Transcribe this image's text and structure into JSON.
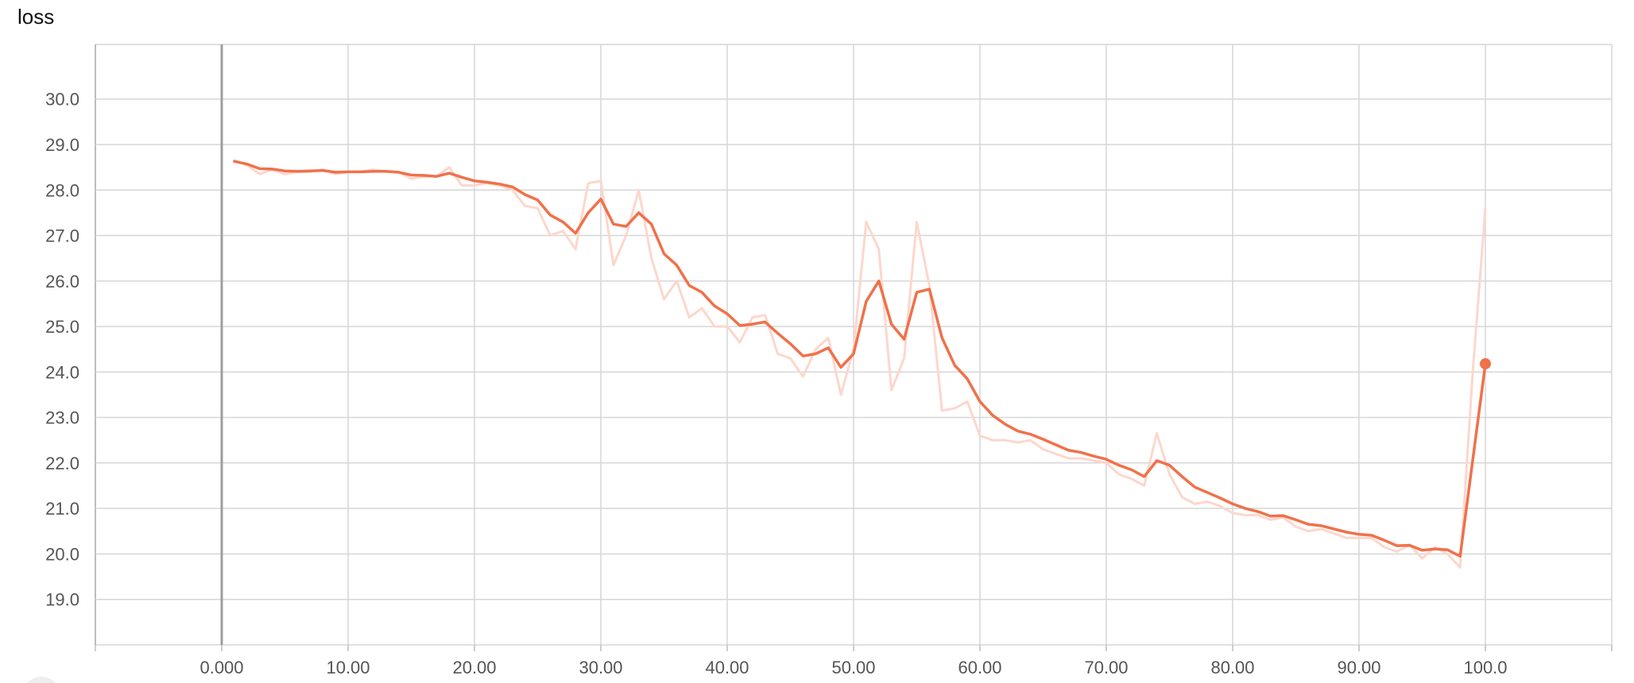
{
  "chart_data": {
    "type": "line",
    "title": "loss",
    "xlabel": "",
    "ylabel": "",
    "xlim": [
      -10,
      110
    ],
    "ylim": [
      18,
      31.2
    ],
    "x_ticks": [
      0,
      10,
      20,
      30,
      40,
      50,
      60,
      70,
      80,
      90,
      100
    ],
    "x_tick_labels": [
      "0.000",
      "10.00",
      "20.00",
      "30.00",
      "40.00",
      "50.00",
      "60.00",
      "70.00",
      "80.00",
      "90.00",
      "100.0"
    ],
    "y_ticks": [
      19,
      20,
      21,
      22,
      23,
      24,
      25,
      26,
      27,
      28,
      29,
      30
    ],
    "y_tick_labels": [
      "19.0",
      "20.0",
      "21.0",
      "22.0",
      "23.0",
      "24.0",
      "25.0",
      "26.0",
      "27.0",
      "28.0",
      "29.0",
      "30.0"
    ],
    "grid": true,
    "colors": {
      "smoothed": "#f0714a",
      "raw": "#fcd7cc",
      "grid": "#d6d6d6",
      "zero_axis": "#9e9e9e"
    },
    "series": [
      {
        "role": "raw",
        "x": [
          1,
          2,
          3,
          4,
          5,
          6,
          7,
          8,
          9,
          10,
          11,
          12,
          13,
          14,
          15,
          16,
          17,
          18,
          19,
          20,
          21,
          22,
          23,
          24,
          25,
          26,
          27,
          28,
          29,
          30,
          31,
          32,
          33,
          34,
          35,
          36,
          37,
          38,
          39,
          40,
          41,
          42,
          43,
          44,
          45,
          46,
          47,
          48,
          49,
          50,
          51,
          52,
          53,
          54,
          55,
          56,
          57,
          58,
          59,
          60,
          61,
          62,
          63,
          64,
          65,
          66,
          67,
          68,
          69,
          70,
          71,
          72,
          73,
          74,
          75,
          76,
          77,
          78,
          79,
          80,
          81,
          82,
          83,
          84,
          85,
          86,
          87,
          88,
          89,
          90,
          91,
          92,
          93,
          94,
          95,
          96,
          97,
          98,
          99,
          100
        ],
        "y": [
          28.65,
          28.55,
          28.35,
          28.45,
          28.35,
          28.4,
          28.4,
          28.45,
          28.35,
          28.4,
          28.4,
          28.45,
          28.4,
          28.4,
          28.25,
          28.3,
          28.3,
          28.5,
          28.1,
          28.1,
          28.15,
          28.1,
          28.0,
          27.65,
          27.6,
          27.0,
          27.1,
          26.7,
          28.15,
          28.2,
          26.35,
          27.0,
          28.0,
          26.5,
          25.6,
          26.0,
          25.2,
          25.4,
          25.0,
          25.0,
          24.65,
          25.2,
          25.25,
          24.4,
          24.3,
          23.9,
          24.5,
          24.75,
          23.5,
          24.5,
          27.3,
          26.7,
          23.6,
          24.3,
          27.3,
          25.9,
          23.15,
          23.2,
          23.35,
          22.6,
          22.5,
          22.5,
          22.45,
          22.5,
          22.3,
          22.2,
          22.1,
          22.1,
          22.05,
          22.0,
          21.75,
          21.65,
          21.5,
          22.65,
          21.75,
          21.25,
          21.1,
          21.15,
          21.05,
          20.9,
          20.85,
          20.85,
          20.75,
          20.8,
          20.6,
          20.5,
          20.55,
          20.45,
          20.35,
          20.35,
          20.35,
          20.15,
          20.05,
          20.2,
          19.9,
          20.15,
          20.0,
          19.7,
          24.0,
          27.6
        ]
      },
      {
        "role": "smoothed",
        "x": [
          1,
          2,
          3,
          4,
          5,
          6,
          7,
          8,
          9,
          10,
          11,
          12,
          13,
          14,
          15,
          16,
          17,
          18,
          19,
          20,
          21,
          22,
          23,
          24,
          25,
          26,
          27,
          28,
          29,
          30,
          31,
          32,
          33,
          34,
          35,
          36,
          37,
          38,
          39,
          40,
          41,
          42,
          43,
          44,
          45,
          46,
          47,
          48,
          49,
          50,
          51,
          52,
          53,
          54,
          55,
          56,
          57,
          58,
          59,
          60,
          61,
          62,
          63,
          64,
          65,
          66,
          67,
          68,
          69,
          70,
          71,
          72,
          73,
          74,
          75,
          76,
          77,
          78,
          79,
          80,
          81,
          82,
          83,
          84,
          85,
          86,
          87,
          88,
          89,
          90,
          91,
          92,
          93,
          94,
          95,
          96,
          97,
          98,
          100
        ],
        "y": [
          28.63,
          28.57,
          28.47,
          28.46,
          28.42,
          28.41,
          28.42,
          28.43,
          28.39,
          28.4,
          28.4,
          28.41,
          28.41,
          28.39,
          28.33,
          28.32,
          28.3,
          28.37,
          28.28,
          28.2,
          28.17,
          28.13,
          28.07,
          27.9,
          27.78,
          27.45,
          27.3,
          27.05,
          27.5,
          27.8,
          27.25,
          27.2,
          27.5,
          27.25,
          26.6,
          26.35,
          25.9,
          25.75,
          25.45,
          25.28,
          25.02,
          25.05,
          25.1,
          24.85,
          24.62,
          24.35,
          24.4,
          24.53,
          24.1,
          24.4,
          25.55,
          26.0,
          25.05,
          24.72,
          25.75,
          25.82,
          24.75,
          24.15,
          23.85,
          23.35,
          23.05,
          22.85,
          22.7,
          22.63,
          22.52,
          22.4,
          22.28,
          22.23,
          22.15,
          22.08,
          21.95,
          21.85,
          21.7,
          22.05,
          21.95,
          21.7,
          21.47,
          21.35,
          21.23,
          21.1,
          21.0,
          20.93,
          20.83,
          20.84,
          20.75,
          20.65,
          20.62,
          20.55,
          20.48,
          20.43,
          20.41,
          20.3,
          20.18,
          20.19,
          20.08,
          20.11,
          20.09,
          19.95,
          24.18
        ]
      }
    ]
  }
}
